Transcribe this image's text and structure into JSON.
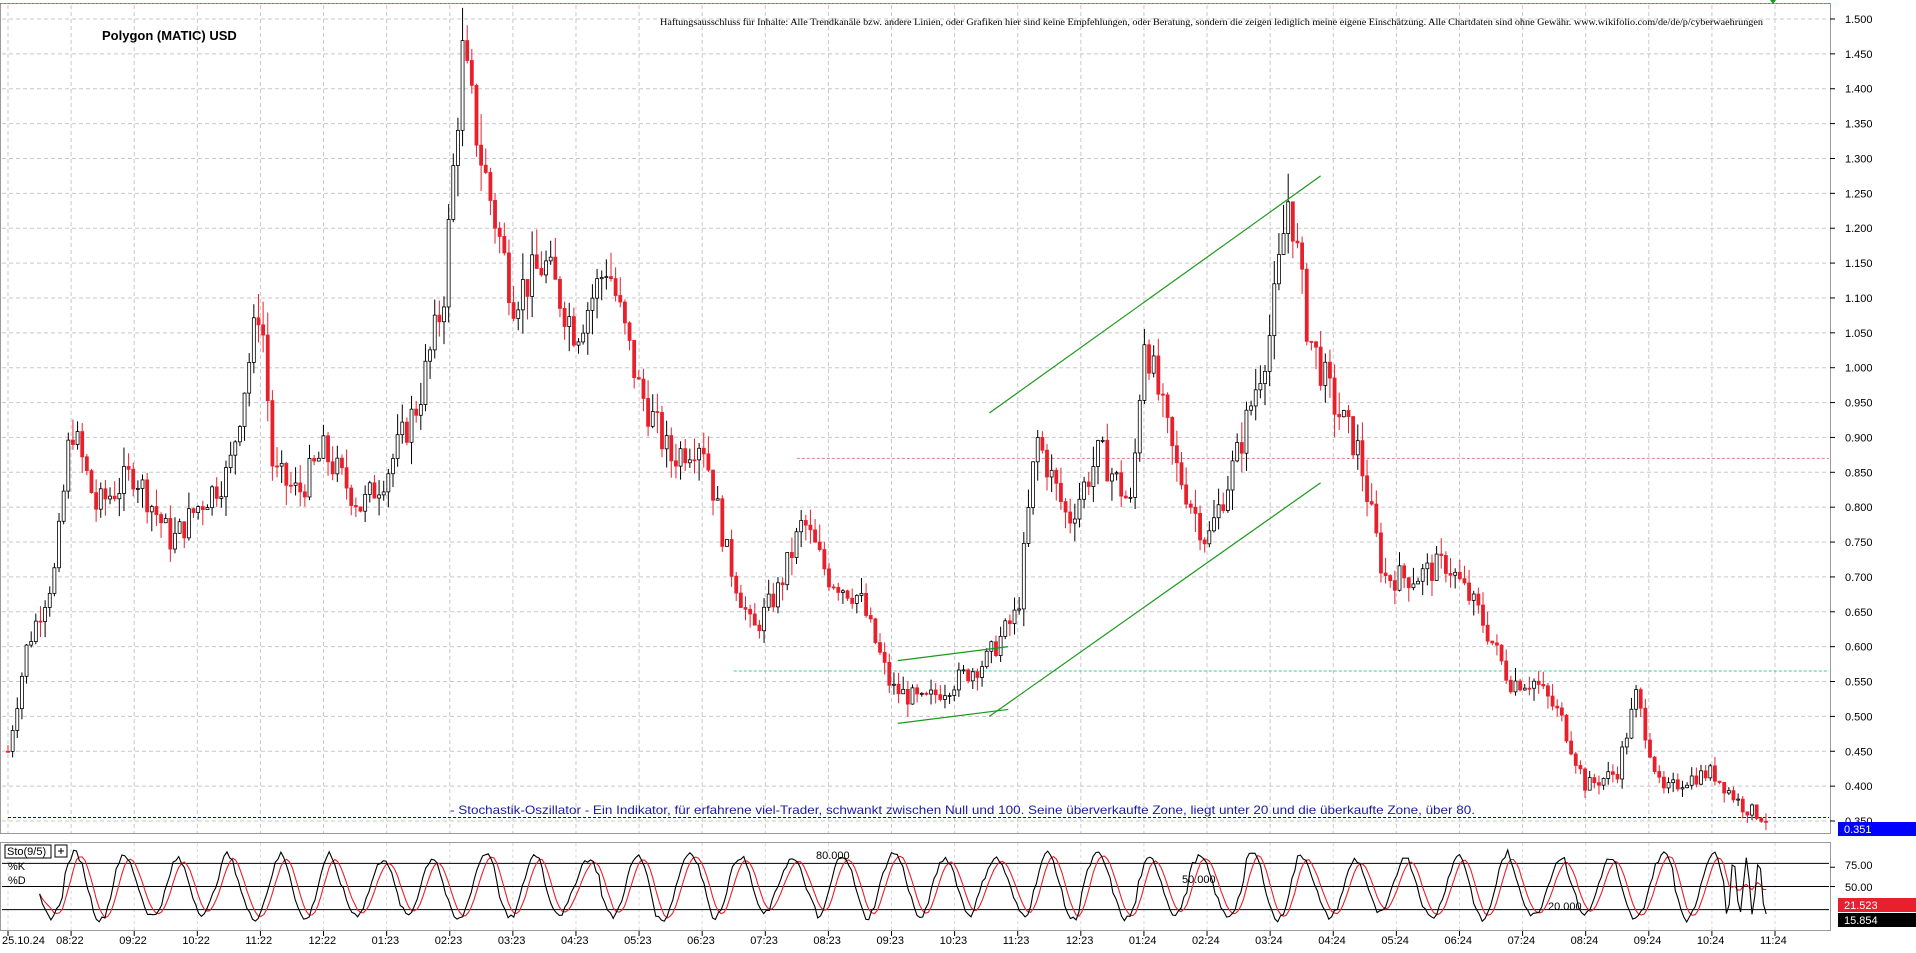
{
  "chart_data": [
    {
      "type": "candlestick",
      "title": "Polygon (MATIC) USD",
      "disclaimer": "Haftungsausschluss für Inhalte: Alle Trendkanäle bzw. andere Linien, oder Grafiken hier sind keine Empfehlungen, oder Beratung, sondern die zeigen lediglich meine eigene Einschätzung. Alle Chartdaten sind ohne Gewähr. www.wikifolio.com/de/de/p/cyberwaehrungen",
      "note": "- Stochastik-Oszillator - Ein Indikator, für erfahrene viel-Trader, schwankt zwischen Null und 100. Seine überverkaufte Zone, liegt unter 20 und die überkaufte Zone, über 80.",
      "x_ticks": [
        "25.10.24",
        "08:22",
        "09:22",
        "10:22",
        "11:22",
        "12:22",
        "01:23",
        "02:23",
        "03:23",
        "04:23",
        "05:23",
        "06:23",
        "07:23",
        "08:23",
        "09:23",
        "10:23",
        "11:23",
        "12:23",
        "01:24",
        "02:24",
        "03:24",
        "04:24",
        "05:24",
        "06:24",
        "07:24",
        "08:24",
        "09:24",
        "10:24",
        "11:24"
      ],
      "y_ticks": [
        "1.500",
        "1.450",
        "1.400",
        "1.350",
        "1.300",
        "1.250",
        "1.200",
        "1.150",
        "1.100",
        "1.050",
        "1.000",
        "0.950",
        "0.900",
        "0.850",
        "0.800",
        "0.750",
        "0.700",
        "0.650",
        "0.600",
        "0.550",
        "0.500",
        "0.450",
        "0.400",
        "0.350"
      ],
      "ylim": [
        0.34,
        1.52
      ],
      "grid": true,
      "last_price": "0.351",
      "anchors": [
        {
          "month": 0,
          "price": 0.45
        },
        {
          "month": 0.3,
          "price": 0.6
        },
        {
          "month": 0.75,
          "price": 0.71
        },
        {
          "month": 1.0,
          "price": 0.92
        },
        {
          "month": 1.4,
          "price": 0.8
        },
        {
          "month": 2.0,
          "price": 0.85
        },
        {
          "month": 2.6,
          "price": 0.75
        },
        {
          "month": 3.0,
          "price": 0.8
        },
        {
          "month": 3.5,
          "price": 0.85
        },
        {
          "month": 4.0,
          "price": 1.1
        },
        {
          "month": 4.2,
          "price": 0.85
        },
        {
          "month": 4.6,
          "price": 0.82
        },
        {
          "month": 5.0,
          "price": 0.88
        },
        {
          "month": 5.6,
          "price": 0.8
        },
        {
          "month": 6.0,
          "price": 0.85
        },
        {
          "month": 6.5,
          "price": 0.95
        },
        {
          "month": 6.9,
          "price": 1.1
        },
        {
          "month": 7.2,
          "price": 1.45
        },
        {
          "month": 7.5,
          "price": 1.3
        },
        {
          "month": 8.0,
          "price": 1.1
        },
        {
          "month": 8.5,
          "price": 1.15
        },
        {
          "month": 9.0,
          "price": 1.05
        },
        {
          "month": 9.5,
          "price": 1.15
        },
        {
          "month": 10.0,
          "price": 0.97
        },
        {
          "month": 10.5,
          "price": 0.87
        },
        {
          "month": 11.0,
          "price": 0.9
        },
        {
          "month": 11.4,
          "price": 0.73
        },
        {
          "month": 11.8,
          "price": 0.62
        },
        {
          "month": 12.2,
          "price": 0.68
        },
        {
          "month": 12.6,
          "price": 0.78
        },
        {
          "month": 13.0,
          "price": 0.7
        },
        {
          "month": 13.5,
          "price": 0.67
        },
        {
          "month": 14.0,
          "price": 0.54
        },
        {
          "month": 14.5,
          "price": 0.52
        },
        {
          "month": 15.0,
          "price": 0.55
        },
        {
          "month": 15.5,
          "price": 0.58
        },
        {
          "month": 16.0,
          "price": 0.65
        },
        {
          "month": 16.3,
          "price": 0.9
        },
        {
          "month": 16.8,
          "price": 0.78
        },
        {
          "month": 17.3,
          "price": 0.88
        },
        {
          "month": 17.8,
          "price": 0.8
        },
        {
          "month": 18.0,
          "price": 1.05
        },
        {
          "month": 18.5,
          "price": 0.86
        },
        {
          "month": 19.0,
          "price": 0.75
        },
        {
          "month": 19.5,
          "price": 0.88
        },
        {
          "month": 20.0,
          "price": 1.05
        },
        {
          "month": 20.3,
          "price": 1.25
        },
        {
          "month": 20.6,
          "price": 1.05
        },
        {
          "month": 21.0,
          "price": 0.95
        },
        {
          "month": 21.4,
          "price": 0.88
        },
        {
          "month": 21.8,
          "price": 0.7
        },
        {
          "month": 22.3,
          "price": 0.7
        },
        {
          "month": 22.8,
          "price": 0.72
        },
        {
          "month": 23.3,
          "price": 0.65
        },
        {
          "month": 23.8,
          "price": 0.55
        },
        {
          "month": 24.2,
          "price": 0.55
        },
        {
          "month": 24.6,
          "price": 0.5
        },
        {
          "month": 25.0,
          "price": 0.4
        },
        {
          "month": 25.5,
          "price": 0.42
        },
        {
          "month": 25.8,
          "price": 0.53
        },
        {
          "month": 26.2,
          "price": 0.39
        },
        {
          "month": 26.6,
          "price": 0.41
        },
        {
          "month": 27.0,
          "price": 0.42
        },
        {
          "month": 27.5,
          "price": 0.37
        },
        {
          "month": 27.9,
          "price": 0.351
        }
      ],
      "trend_lines": [
        {
          "kind": "channel-upper",
          "from": {
            "month": 15.55,
            "price": 0.935
          },
          "to": {
            "month": 20.8,
            "price": 1.275
          }
        },
        {
          "kind": "channel-lower",
          "from": {
            "month": 15.55,
            "price": 0.5
          },
          "to": {
            "month": 20.8,
            "price": 0.835
          }
        },
        {
          "kind": "wedge-upper",
          "from": {
            "month": 14.1,
            "price": 0.58
          },
          "to": {
            "month": 15.85,
            "price": 0.6
          }
        },
        {
          "kind": "wedge-lower",
          "from": {
            "month": 14.1,
            "price": 0.49
          },
          "to": {
            "month": 15.85,
            "price": 0.51
          }
        }
      ],
      "horizontal_levels": [
        {
          "price": 0.565,
          "color": "#40c8a0",
          "from_month": 11.5
        },
        {
          "price": 0.87,
          "color": "#e08080",
          "from_month": 12.5
        },
        {
          "price": 0.355,
          "color": "#0000ff",
          "from_month": 0
        }
      ],
      "colors": {
        "up": "#000000",
        "down": "#e8202c",
        "trend": "#1a9a1a"
      }
    },
    {
      "type": "line",
      "title": "Sto(9/5)",
      "series": [
        {
          "name": "%K",
          "color": "#000000"
        },
        {
          "name": "%D",
          "color": "#e8202c"
        }
      ],
      "ylim": [
        0,
        100
      ],
      "levels": [
        "80.000",
        "50.000",
        "20.000"
      ],
      "right_axis": [
        "75.00",
        "50.00"
      ],
      "readouts": {
        "k": "21.523",
        "d": "15.854"
      },
      "wave_phases": [
        0.0,
        0.9,
        1.7,
        2.6,
        3.4,
        4.3,
        5.1,
        6.0,
        6.8,
        7.7,
        8.5,
        9.4,
        10.2,
        11.1,
        11.9,
        12.8,
        13.6,
        14.5,
        15.3,
        16.2,
        17.0,
        17.9,
        18.7,
        19.6,
        20.4,
        21.3,
        22.1,
        23.0,
        23.8,
        24.7,
        25.5,
        26.4,
        27.2
      ]
    }
  ]
}
